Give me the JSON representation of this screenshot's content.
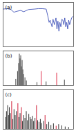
{
  "chart_data": [
    {
      "type": "line",
      "title": "(a)",
      "color": "#2b3fb0",
      "tick_labels": false,
      "grid": false,
      "x": [
        4000,
        3800,
        3600,
        3450,
        3300,
        3100,
        2950,
        2850,
        2700,
        2400,
        2200,
        2000,
        1800,
        1720,
        1650,
        1600,
        1500,
        1450,
        1380,
        1300,
        1250,
        1200,
        1150,
        1100,
        1050,
        1000,
        950,
        900,
        850,
        800,
        750,
        700,
        650,
        600,
        500,
        400
      ],
      "values": [
        85,
        86,
        84,
        78,
        80,
        82,
        79,
        81,
        84,
        85,
        86,
        86,
        85,
        70,
        55,
        60,
        45,
        62,
        50,
        65,
        40,
        58,
        35,
        55,
        45,
        62,
        60,
        50,
        65,
        45,
        55,
        40,
        60,
        50,
        65,
        70
      ],
      "xlim": [
        4000,
        400
      ],
      "ylim": [
        0,
        100
      ]
    },
    {
      "type": "stem",
      "title": "(b)",
      "tick_labels": false,
      "grid": false,
      "x": [
        8.2,
        7.95,
        7.8,
        7.7,
        7.6,
        7.5,
        7.4,
        7.3,
        7.2,
        7.1,
        6.9,
        6.7,
        5.2,
        4.6,
        3.9,
        2.4,
        1.3
      ],
      "values": [
        20,
        45,
        70,
        100,
        85,
        95,
        60,
        80,
        50,
        35,
        25,
        15,
        10,
        45,
        12,
        40,
        18
      ],
      "colors": [
        "#444444",
        "#444444",
        "#444444",
        "#444444",
        "#444444",
        "#444444",
        "#444444",
        "#444444",
        "#444444",
        "#444444",
        "#444444",
        "#444444",
        "#444444",
        "#e0304a",
        "#444444",
        "#e0304a",
        "#444444"
      ],
      "xlim": [
        10,
        0
      ],
      "ylim": [
        0,
        110
      ]
    },
    {
      "type": "stem",
      "title": "(c)",
      "tick_labels": false,
      "grid": false,
      "x": [
        55,
        60,
        67,
        72,
        77,
        83,
        91,
        98,
        105,
        112,
        119,
        128,
        134,
        141,
        149,
        155,
        163,
        170,
        178,
        185,
        193,
        201,
        207,
        215,
        222,
        230,
        239,
        246,
        254,
        262,
        270,
        281,
        290,
        300,
        312,
        325,
        340,
        356,
        371,
        390,
        410,
        430
      ],
      "values": [
        30,
        45,
        60,
        35,
        55,
        40,
        70,
        25,
        50,
        35,
        45,
        65,
        30,
        40,
        55,
        20,
        35,
        28,
        45,
        22,
        38,
        30,
        25,
        33,
        20,
        28,
        60,
        22,
        18,
        25,
        15,
        20,
        35,
        12,
        18,
        10,
        14,
        8,
        12,
        9,
        6,
        5
      ],
      "colors": [
        "#333333",
        "#333333",
        "#333333",
        "#333333",
        "#333333",
        "#333333",
        "#d0203a",
        "#333333",
        "#333333",
        "#333333",
        "#333333",
        "#d0203a",
        "#333333",
        "#333333",
        "#d0203a",
        "#333333",
        "#333333",
        "#333333",
        "#333333",
        "#333333",
        "#333333",
        "#333333",
        "#333333",
        "#333333",
        "#333333",
        "#333333",
        "#d0203a",
        "#333333",
        "#333333",
        "#333333",
        "#333333",
        "#333333",
        "#d0203a",
        "#333333",
        "#333333",
        "#333333",
        "#333333",
        "#d0203a",
        "#333333",
        "#333333",
        "#333333",
        "#333333"
      ],
      "xlim": [
        40,
        460
      ],
      "ylim": [
        0,
        100
      ]
    }
  ]
}
